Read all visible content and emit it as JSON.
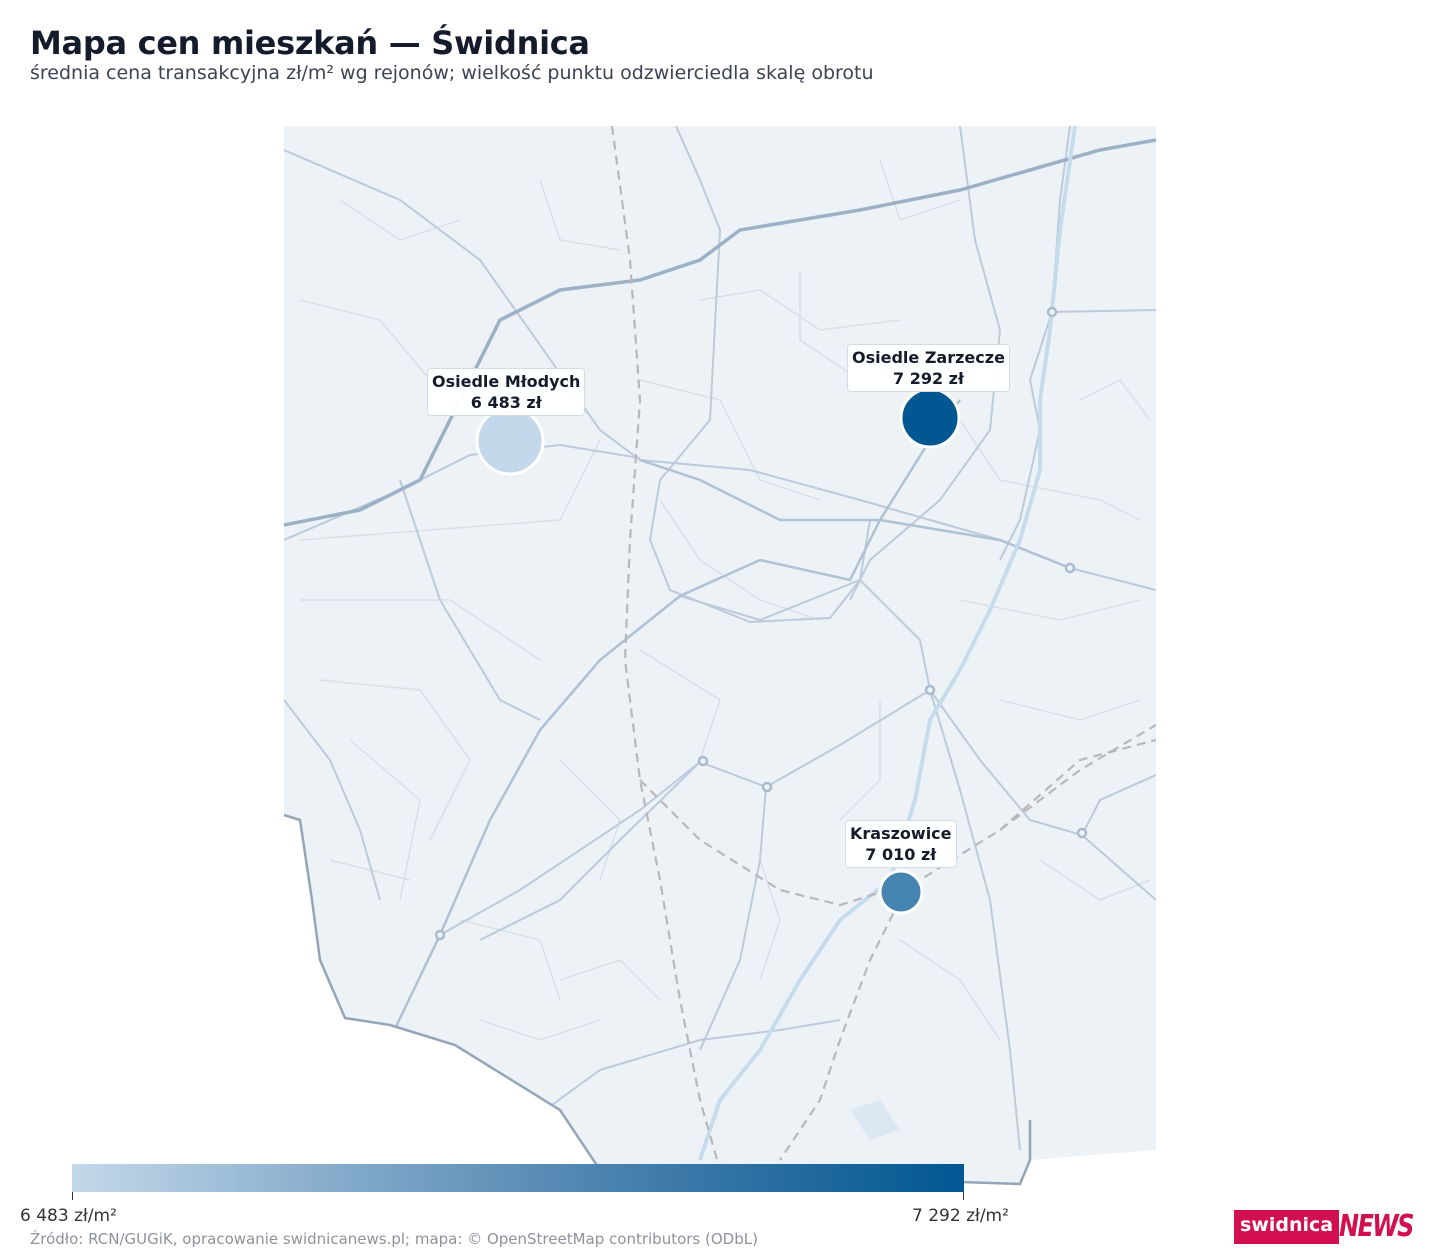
{
  "title": "Mapa cen mieszkań — Świdnica",
  "subtitle": "średnia cena transakcyjna zł/m² wg rejonów; wielkość punktu odzwierciedla skalę obrotu",
  "markers": [
    {
      "name": "Osiedle Młodych",
      "value_label": "6 483 zł",
      "value": 6483,
      "color": "#c3d8ea"
    },
    {
      "name": "Osiedle Zarzecze",
      "value_label": "7 292 zł",
      "value": 7292,
      "color": "#005792"
    },
    {
      "name": "Kraszowice",
      "value_label": "7 010 zł",
      "value": 7010,
      "color": "#4684b2"
    }
  ],
  "legend": {
    "min_label": "6 483 zł/m²",
    "max_label": "7 292 zł/m²",
    "min_value": 6483,
    "max_value": 7292,
    "color_min": "#c3d8ea",
    "color_max": "#005792"
  },
  "source": "Źródło: RCN/GUGiK, opracowanie swidnicanews.pl; mapa: © OpenStreetMap contributors (ODbL)",
  "brand": {
    "part1": "swidnica",
    "part2": "NEWS",
    "color": "#d3104f"
  },
  "colors": {
    "map_bg": "#edf2f7",
    "road": "#b7c6d6",
    "major_road": "#9cb1c6",
    "river": "#c5dcec",
    "rail": "#b8b8bc"
  }
}
